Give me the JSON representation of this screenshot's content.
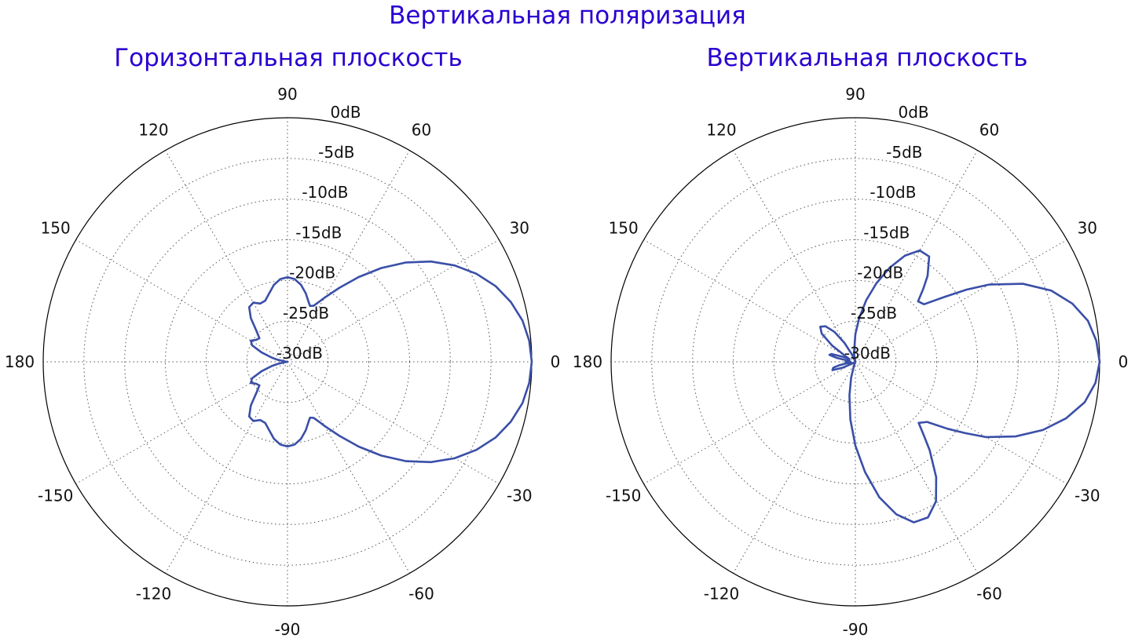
{
  "header": {
    "title": "Вертикальная поляризация"
  },
  "colors": {
    "title": "#2a00d0",
    "pattern": "#3a4fa8",
    "grid": "#555555",
    "frame": "#000000"
  },
  "chart_data": [
    {
      "type": "polar",
      "title": "Горизонтальная плоскость",
      "angle_unit": "deg",
      "r_unit": "dB",
      "rlim": [
        -30,
        0
      ],
      "grid": true,
      "r_ticks": [
        0,
        -5,
        -10,
        -15,
        -20,
        -25,
        -30
      ],
      "r_tick_labels": [
        "0dB",
        "-5dB",
        "-10dB",
        "-15dB",
        "-20dB",
        "-25dB",
        "-30dB"
      ],
      "theta_ticks": [
        0,
        30,
        60,
        90,
        120,
        150,
        180,
        -150,
        -120,
        -90,
        -60,
        -30
      ],
      "theta_tick_labels": [
        "0",
        "30",
        "60",
        "90",
        "120",
        "150",
        "180",
        "-150",
        "-120",
        "-90",
        "-60",
        "-30"
      ],
      "series": [
        {
          "theta": [
            0,
            5,
            10,
            15,
            20,
            25,
            30,
            35,
            40,
            45,
            50,
            55,
            60,
            62,
            65,
            68,
            70,
            75,
            80,
            85,
            90,
            95,
            100,
            105,
            110,
            115,
            120,
            125,
            130,
            135,
            140,
            145,
            150,
            155,
            160,
            165,
            168,
            170,
            173,
            176,
            180,
            -176,
            -173,
            -170,
            -168,
            -165,
            -160,
            -155,
            -150,
            -145,
            -140,
            -135,
            -130,
            -125,
            -120,
            -115,
            -110,
            -105,
            -100,
            -95,
            -90,
            -85,
            -80,
            -75,
            -70,
            -68,
            -65,
            -62,
            -60,
            -55,
            -50,
            -45,
            -40,
            -35,
            -30,
            -25,
            -20,
            -15,
            -10,
            -5,
            0
          ],
          "r": [
            0,
            -0.2,
            -0.7,
            -1.6,
            -2.8,
            -4.4,
            -6.3,
            -8.5,
            -11.0,
            -13.7,
            -16.4,
            -18.9,
            -20.9,
            -21.6,
            -22.4,
            -22.6,
            -22.3,
            -21.3,
            -20.4,
            -19.8,
            -19.6,
            -19.8,
            -20.4,
            -21.3,
            -22.0,
            -22.1,
            -21.6,
            -21.8,
            -23.0,
            -24.6,
            -25.5,
            -25.3,
            -24.8,
            -25.2,
            -26.6,
            -28.0,
            -28.7,
            -29.5,
            -29.8,
            -29.9,
            -30,
            -29.9,
            -29.8,
            -29.5,
            -28.8,
            -28.0,
            -26.6,
            -25.2,
            -24.8,
            -25.3,
            -25.5,
            -24.6,
            -23.0,
            -21.8,
            -21.6,
            -22.1,
            -22.0,
            -21.3,
            -20.4,
            -19.8,
            -19.6,
            -19.8,
            -20.4,
            -21.3,
            -22.3,
            -22.6,
            -22.4,
            -21.6,
            -20.9,
            -18.9,
            -16.4,
            -13.7,
            -11.0,
            -8.5,
            -6.3,
            -4.4,
            -2.8,
            -1.6,
            -0.7,
            -0.2,
            0
          ]
        }
      ]
    },
    {
      "type": "polar",
      "title": "Вертикальная плоскость",
      "angle_unit": "deg",
      "r_unit": "dB",
      "rlim": [
        -30,
        0
      ],
      "grid": true,
      "r_ticks": [
        0,
        -5,
        -10,
        -15,
        -20,
        -25,
        -30
      ],
      "r_tick_labels": [
        "0dB",
        "-5dB",
        "-10dB",
        "-15dB",
        "-20dB",
        "-25dB",
        "-30dB"
      ],
      "theta_ticks": [
        0,
        30,
        60,
        90,
        120,
        150,
        180,
        -150,
        -120,
        -90,
        -60,
        -30
      ],
      "theta_tick_labels": [
        "0",
        "30",
        "60",
        "90",
        "120",
        "150",
        "180",
        "-150",
        "-120",
        "-90",
        "-60",
        "-30"
      ],
      "series": [
        {
          "theta": [
            0,
            5,
            10,
            15,
            20,
            25,
            30,
            33,
            36,
            40,
            44,
            47,
            50,
            55,
            60,
            65,
            70,
            75,
            80,
            85,
            90,
            100,
            110,
            115,
            120,
            125,
            130,
            135,
            140,
            145,
            150,
            155,
            158,
            162,
            165,
            168,
            172,
            175,
            178,
            180,
            -178,
            -175,
            -172,
            -170,
            -168,
            -165,
            -160,
            -155,
            -150,
            -145,
            -140,
            -135,
            -130,
            -125,
            -120,
            -115,
            -110,
            -105,
            -100,
            -95,
            -90,
            -85,
            -80,
            -75,
            -70,
            -65,
            -60,
            -55,
            -50,
            -47,
            -44,
            -40,
            -36,
            -33,
            -30,
            -25,
            -20,
            -15,
            -10,
            -5,
            0
          ],
          "r": [
            0,
            -0.3,
            -1.0,
            -2.4,
            -4.4,
            -7.3,
            -11.0,
            -13.7,
            -16.4,
            -19.0,
            -19.3,
            -17.8,
            -16.2,
            -14.2,
            -14.2,
            -15.6,
            -17.7,
            -20.0,
            -22.3,
            -24.6,
            -26.6,
            -29.0,
            -30,
            -29.0,
            -27.3,
            -25.5,
            -24.3,
            -23.9,
            -24.6,
            -26.5,
            -28.6,
            -29.2,
            -28.4,
            -26.9,
            -26.7,
            -27.6,
            -29.3,
            -29.2,
            -28.8,
            -29.0,
            -28.8,
            -29.2,
            -29.5,
            -28.9,
            -28.0,
            -27.2,
            -27.0,
            -28.3,
            -29.7,
            -30,
            -30,
            -30,
            -30,
            -30,
            -30,
            -30,
            -29.5,
            -28.0,
            -25.8,
            -22.9,
            -19.7,
            -16.4,
            -13.1,
            -10.6,
            -9.0,
            -8.9,
            -10.2,
            -12.7,
            -15.8,
            -17.7,
            -19.2,
            -18.5,
            -16.0,
            -13.9,
            -11.5,
            -8.3,
            -5.5,
            -3.2,
            -1.4,
            -0.4,
            0
          ]
        }
      ]
    }
  ]
}
